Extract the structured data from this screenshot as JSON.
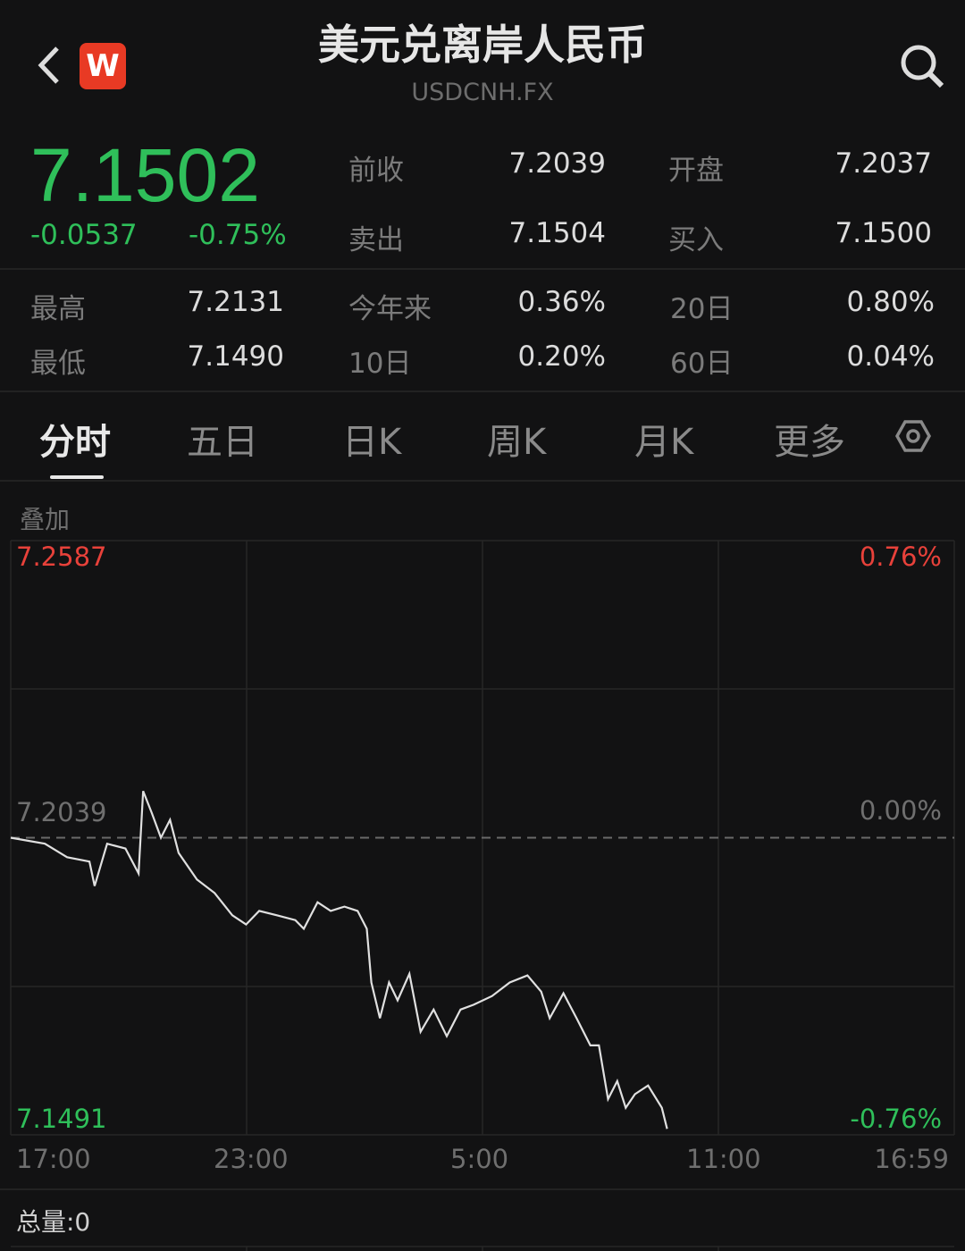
{
  "header": {
    "title": "美元兑离岸人民币",
    "symbol": "USDCNH.FX",
    "logo_text": "W",
    "back_icon": "chevron-left-icon",
    "search_icon": "search-icon"
  },
  "quote": {
    "price": "7.1502",
    "change": "-0.0537",
    "change_pct": "-0.75%",
    "color_down": "#2fbf5a",
    "color_up": "#e8413a"
  },
  "stats": [
    {
      "label": "前收",
      "value": "7.2039"
    },
    {
      "label": "开盘",
      "value": "7.2037"
    },
    {
      "label": "卖出",
      "value": "7.1504"
    },
    {
      "label": "买入",
      "value": "7.1500"
    },
    {
      "label": "最高",
      "value": "7.2131"
    },
    {
      "label": "今年来",
      "value": "0.36%"
    },
    {
      "label": "20日",
      "value": "0.80%"
    },
    {
      "label": "最低",
      "value": "7.1490"
    },
    {
      "label": "10日",
      "value": "0.20%"
    },
    {
      "label": "60日",
      "value": "0.04%"
    }
  ],
  "tabs": [
    {
      "label": "分时",
      "active": true
    },
    {
      "label": "五日"
    },
    {
      "label": "日K"
    },
    {
      "label": "周K"
    },
    {
      "label": "月K"
    },
    {
      "label": "更多"
    }
  ],
  "settings_icon": "settings-hexagon-icon",
  "overlay_label": "叠加",
  "volume_label": "总量:0",
  "chart_data": {
    "type": "line",
    "ylim": [
      7.1491,
      7.2587
    ],
    "y_labels_left": {
      "top": "7.2587",
      "mid": "7.2039",
      "bottom": "7.1491"
    },
    "y_labels_right": {
      "top": "0.76%",
      "mid": "0.00%",
      "bottom": "-0.76%"
    },
    "baseline": 7.2039,
    "x_ticks": [
      "17:00",
      "23:00",
      "5:00",
      "11:00",
      "16:59"
    ],
    "grid": true,
    "series": [
      {
        "points": [
          [
            "17:00",
            7.2039
          ],
          [
            "17:52",
            7.2028
          ],
          [
            "18:26",
            7.2003
          ],
          [
            "19:00",
            7.1995
          ],
          [
            "19:08",
            7.195
          ],
          [
            "19:27",
            7.2028
          ],
          [
            "19:55",
            7.2019
          ],
          [
            "20:15",
            7.1973
          ],
          [
            "20:22",
            7.2125
          ],
          [
            "20:35",
            7.2085
          ],
          [
            "20:49",
            7.2039
          ],
          [
            "21:03",
            7.2072
          ],
          [
            "21:16",
            7.2011
          ],
          [
            "21:44",
            7.1962
          ],
          [
            "22:11",
            7.1937
          ],
          [
            "22:38",
            7.1896
          ],
          [
            "22:59",
            7.1879
          ],
          [
            "23:19",
            7.1904
          ],
          [
            "23:46",
            7.1896
          ],
          [
            "00:14",
            7.1887
          ],
          [
            "00:27",
            7.1871
          ],
          [
            "00:48",
            7.192
          ],
          [
            "01:08",
            7.1904
          ],
          [
            "01:29",
            7.1912
          ],
          [
            "01:49",
            7.1904
          ],
          [
            "02:03",
            7.1871
          ],
          [
            "02:10",
            7.1772
          ],
          [
            "02:23",
            7.1706
          ],
          [
            "02:37",
            7.1772
          ],
          [
            "02:50",
            7.1739
          ],
          [
            "03:08",
            7.1788
          ],
          [
            "03:25",
            7.1681
          ],
          [
            "03:45",
            7.1722
          ],
          [
            "04:05",
            7.1673
          ],
          [
            "04:26",
            7.1722
          ],
          [
            "04:46",
            7.1731
          ],
          [
            "05:14",
            7.1747
          ],
          [
            "05:41",
            7.1772
          ],
          [
            "06:08",
            7.1785
          ],
          [
            "06:29",
            7.1755
          ],
          [
            "06:42",
            7.1706
          ],
          [
            "07:03",
            7.1752
          ],
          [
            "07:23",
            7.1706
          ],
          [
            "07:44",
            7.1656
          ],
          [
            "07:57",
            7.1656
          ],
          [
            "08:11",
            7.1557
          ],
          [
            "08:25",
            7.159
          ],
          [
            "08:38",
            7.1541
          ],
          [
            "08:52",
            7.1566
          ],
          [
            "09:12",
            7.1582
          ],
          [
            "09:33",
            7.1541
          ],
          [
            "09:41",
            7.1502
          ]
        ]
      }
    ]
  }
}
